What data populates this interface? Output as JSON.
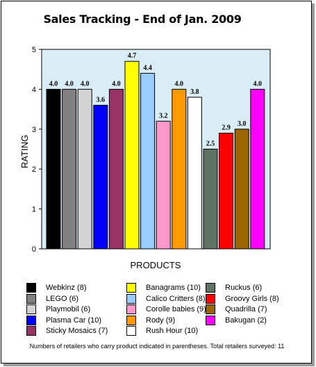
{
  "chart_data": {
    "type": "bar",
    "title": "Sales Tracking - End of Jan. 2009",
    "xlabel": "PRODUCTS",
    "ylabel": "RATING",
    "ylim": [
      0,
      5
    ],
    "yticks": [
      0,
      1,
      2,
      3,
      4,
      5
    ],
    "grid": false,
    "legend": "bottom",
    "categories": [
      "Webkinz (8)",
      "LEGO (6)",
      "Playmobil (6)",
      "Plasma Car (10)",
      "Sticky Mosaics (7)",
      "Banagrams (10)",
      "Calico Critters (8)",
      "Corolle babies (9)",
      "Rody (9)",
      "Rush Hour (10)",
      "Ruckus (6)",
      "Groovy Girls (8)",
      "Quadrilla (7)",
      "Bakugan (2)"
    ],
    "values": [
      4.0,
      4.0,
      4.0,
      3.6,
      4.0,
      4.7,
      4.4,
      3.2,
      4.0,
      3.8,
      2.5,
      2.9,
      3.0,
      4.0
    ],
    "value_labels": [
      "4.0",
      "4.0",
      "4.0",
      "3.6",
      "4.0",
      "4.7",
      "4.4",
      "3.2",
      "4.0",
      "3.8",
      "2.5",
      "2.9",
      "3.0",
      "4.0"
    ],
    "colors": [
      "#000000",
      "#808080",
      "#d3d3d3",
      "#0000ff",
      "#993366",
      "#ffff00",
      "#99ccff",
      "#ff99cc",
      "#ff9900",
      "#ffffff",
      "#5f7464",
      "#ff0000",
      "#996600",
      "#ff00ff"
    ],
    "plot_background": "#d9edf7",
    "footnote": "Numbers of retailers who carry product indicated in parentheses. Total retailers surveyed: 11"
  }
}
